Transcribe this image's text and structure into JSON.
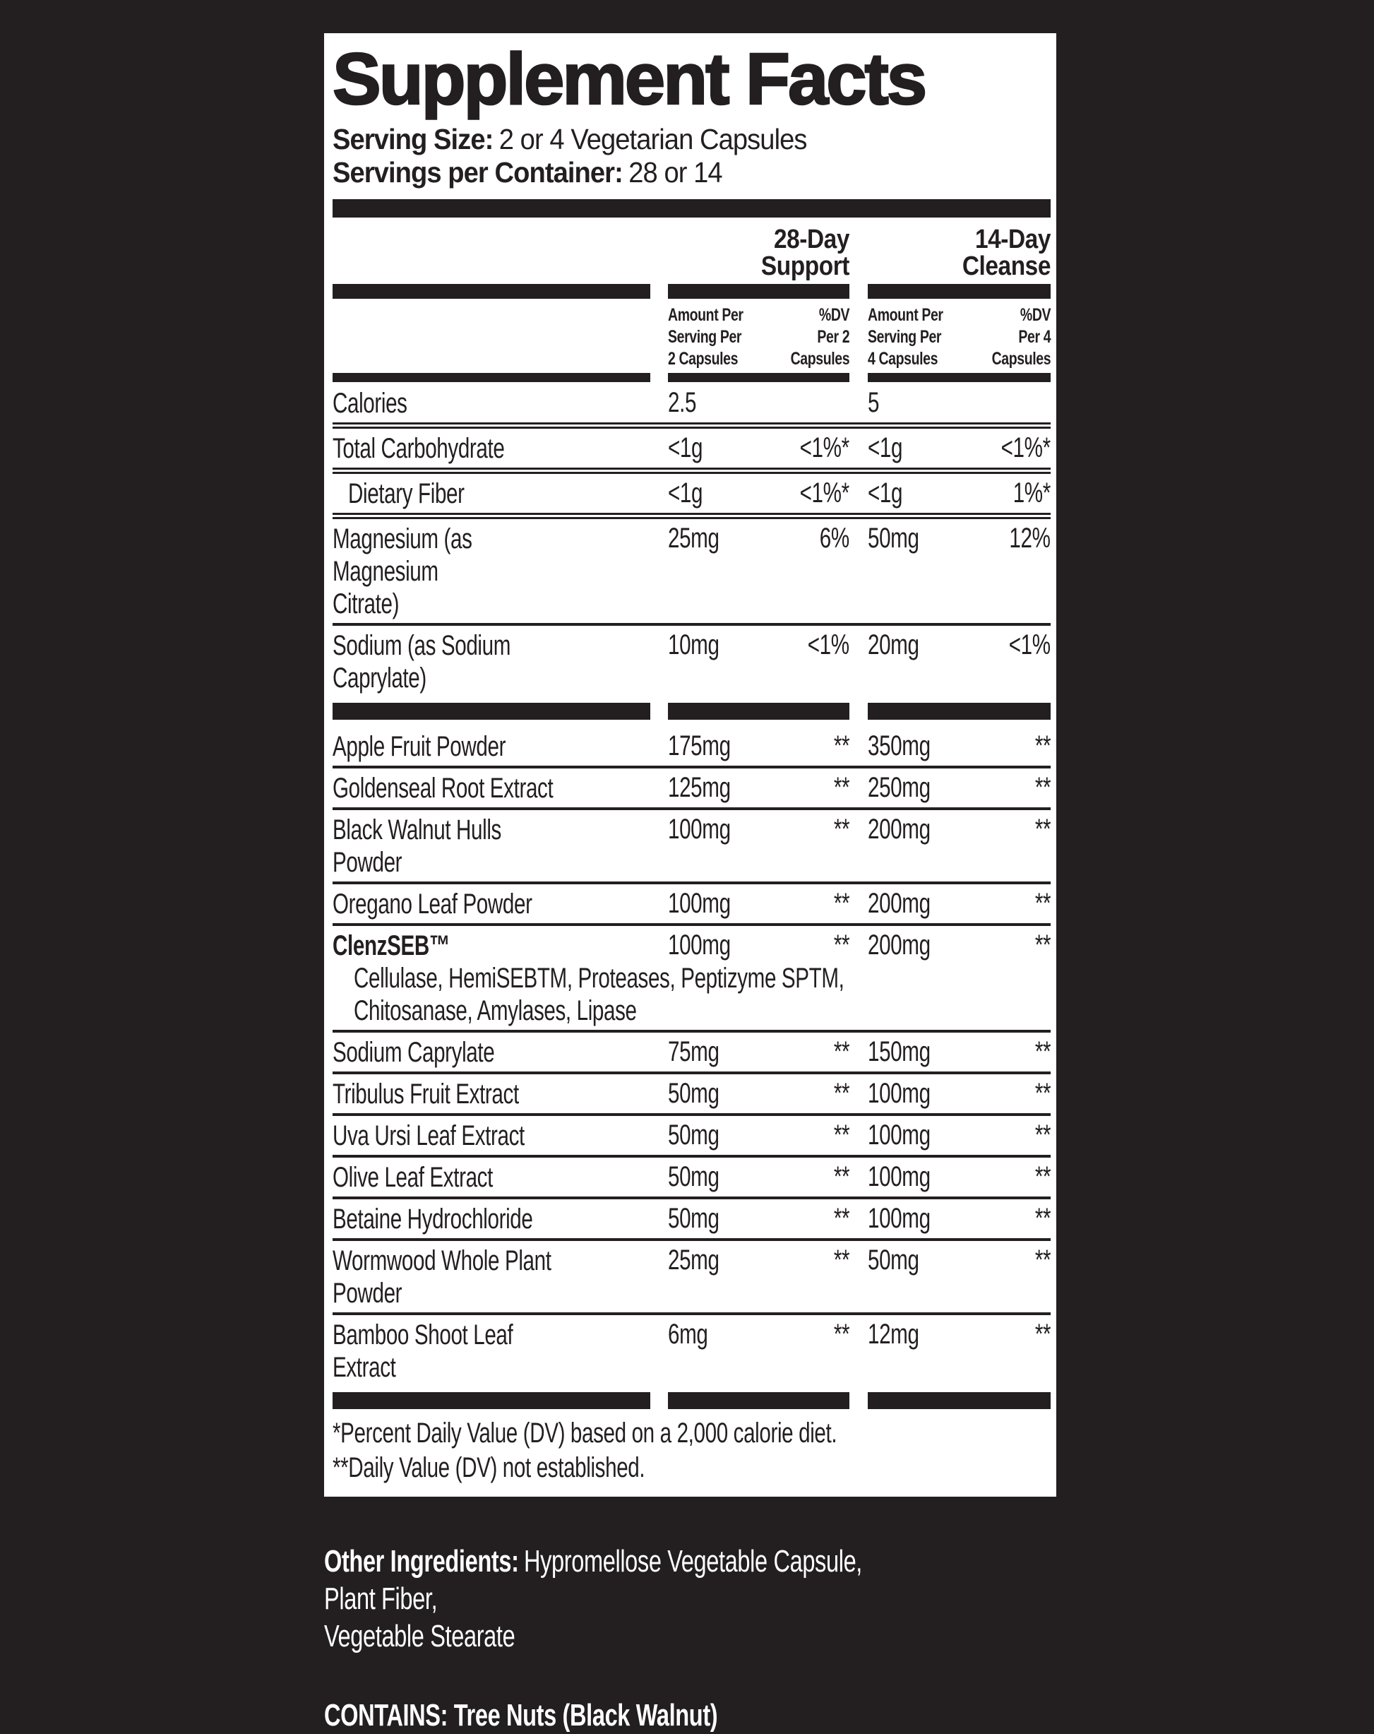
{
  "colors": {
    "background": "#231f20",
    "panel": "#ffffff",
    "ink": "#231f20"
  },
  "panel": {
    "title": "Supplement Facts",
    "serving_size_label": "Serving Size:",
    "serving_size_value": "2 or 4 Vegetarian Capsules",
    "servings_per_container_label": "Servings per Container:",
    "servings_per_container_value": "28 or 14",
    "group_headers": [
      "28-Day Support",
      "14-Day Cleanse"
    ],
    "column_headers": {
      "amount_2": "Amount Per\nServing Per\n2 Capsules",
      "dv_2": "%DV\nPer 2\nCapsules",
      "amount_4": "Amount Per\nServing Per\n4 Capsules",
      "dv_4": "%DV\nPer 4\nCapsules"
    },
    "rows": [
      {
        "label": "Calories",
        "amount2": "2.5",
        "dv2": "",
        "amount4": "5",
        "dv4": "",
        "bold": false,
        "indent": false,
        "sub": "",
        "rule": "double"
      },
      {
        "label": "Total Carbohydrate",
        "amount2": "<1g",
        "dv2": "<1%*",
        "amount4": "<1g",
        "dv4": "<1%*",
        "bold": false,
        "indent": false,
        "sub": "",
        "rule": "double"
      },
      {
        "label": "Dietary Fiber",
        "amount2": "<1g",
        "dv2": "<1%*",
        "amount4": "<1g",
        "dv4": "1%*",
        "bold": false,
        "indent": true,
        "sub": "",
        "rule": "double"
      },
      {
        "label": "Magnesium (as Magnesium\nCitrate)",
        "amount2": "25mg",
        "dv2": "6%",
        "amount4": "50mg",
        "dv4": "12%",
        "bold": false,
        "indent": false,
        "sub": "",
        "rule": "single"
      },
      {
        "label": "Sodium (as Sodium Caprylate)",
        "amount2": "10mg",
        "dv2": "<1%",
        "amount4": "20mg",
        "dv4": "<1%",
        "bold": false,
        "indent": false,
        "sub": "",
        "rule": "bars"
      },
      {
        "label": "Apple Fruit Powder",
        "amount2": "175mg",
        "dv2": "**",
        "amount4": "350mg",
        "dv4": "**",
        "bold": false,
        "indent": false,
        "sub": "",
        "rule": "single"
      },
      {
        "label": "Goldenseal Root Extract",
        "amount2": "125mg",
        "dv2": "**",
        "amount4": "250mg",
        "dv4": "**",
        "bold": false,
        "indent": false,
        "sub": "",
        "rule": "single"
      },
      {
        "label": "Black Walnut Hulls Powder",
        "amount2": "100mg",
        "dv2": "**",
        "amount4": "200mg",
        "dv4": "**",
        "bold": false,
        "indent": false,
        "sub": "",
        "rule": "single"
      },
      {
        "label": "Oregano Leaf Powder",
        "amount2": "100mg",
        "dv2": "**",
        "amount4": "200mg",
        "dv4": "**",
        "bold": false,
        "indent": false,
        "sub": "",
        "rule": "single"
      },
      {
        "label": "ClenzSEB™",
        "amount2": "100mg",
        "dv2": "**",
        "amount4": "200mg",
        "dv4": "**",
        "bold": true,
        "indent": false,
        "sub": "Cellulase, HemiSEBTM, Proteases, Peptizyme SPTM,\nChitosanase, Amylases, Lipase",
        "rule": "single"
      },
      {
        "label": "Sodium Caprylate",
        "amount2": "75mg",
        "dv2": "**",
        "amount4": "150mg",
        "dv4": "**",
        "bold": false,
        "indent": false,
        "sub": "",
        "rule": "single"
      },
      {
        "label": "Tribulus Fruit Extract",
        "amount2": "50mg",
        "dv2": "**",
        "amount4": "100mg",
        "dv4": "**",
        "bold": false,
        "indent": false,
        "sub": "",
        "rule": "single"
      },
      {
        "label": "Uva Ursi Leaf Extract",
        "amount2": "50mg",
        "dv2": "**",
        "amount4": "100mg",
        "dv4": "**",
        "bold": false,
        "indent": false,
        "sub": "",
        "rule": "single"
      },
      {
        "label": "Olive Leaf Extract",
        "amount2": "50mg",
        "dv2": "**",
        "amount4": "100mg",
        "dv4": "**",
        "bold": false,
        "indent": false,
        "sub": "",
        "rule": "single"
      },
      {
        "label": "Betaine Hydrochloride",
        "amount2": "50mg",
        "dv2": "**",
        "amount4": "100mg",
        "dv4": "**",
        "bold": false,
        "indent": false,
        "sub": "",
        "rule": "single"
      },
      {
        "label": "Wormwood Whole Plant\nPowder",
        "amount2": "25mg",
        "dv2": "**",
        "amount4": "50mg",
        "dv4": "**",
        "bold": false,
        "indent": false,
        "sub": "",
        "rule": "single"
      },
      {
        "label": "Bamboo Shoot Leaf Extract",
        "amount2": "6mg",
        "dv2": "**",
        "amount4": "12mg",
        "dv4": "**",
        "bold": false,
        "indent": false,
        "sub": "",
        "rule": "bars"
      }
    ],
    "footnotes": {
      "percent_dv": "*Percent Daily Value (DV) based on a 2,000 calorie diet.",
      "not_established": "**Daily Value (DV) not established."
    }
  },
  "below": {
    "other_ingredients_label": "Other Ingredients:",
    "other_ingredients_value": "Hypromellose Vegetable Capsule, Plant Fiber,\nVegetable Stearate",
    "contains": "CONTAINS: Tree Nuts (Black Walnut)"
  }
}
